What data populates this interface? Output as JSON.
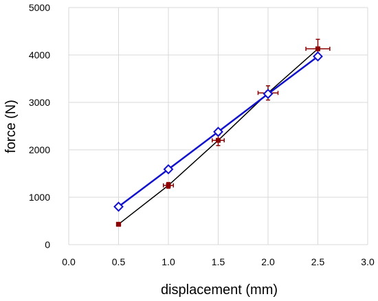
{
  "chart_data": {
    "type": "scatter",
    "title": "",
    "xlabel": "displacement (mm)",
    "ylabel": "force (N)",
    "xlim": [
      0,
      3
    ],
    "ylim": [
      0,
      5000
    ],
    "xticks": [
      "0.0",
      "0.5",
      "1.0",
      "1.5",
      "2.0",
      "2.5",
      "3.0"
    ],
    "yticks": [
      "0",
      "1000",
      "2000",
      "3000",
      "4000",
      "5000"
    ],
    "grid": true,
    "legend": "none",
    "series": [
      {
        "color": "#000000",
        "marker": "none",
        "line": true,
        "x": [
          0.5,
          1.0,
          1.5,
          2.0,
          2.5
        ],
        "y": [
          430,
          1250,
          2200,
          3200,
          4130
        ]
      },
      {
        "color": "#8b0000",
        "marker": "square",
        "line": false,
        "x": [
          0.5,
          1.0,
          1.5,
          2.0,
          2.5
        ],
        "y": [
          430,
          1250,
          2200,
          3200,
          4130
        ],
        "x_error": [
          0.02,
          0.05,
          0.06,
          0.1,
          0.12
        ],
        "y_error": [
          25,
          60,
          110,
          150,
          200
        ]
      },
      {
        "color": "#1010cc",
        "marker": "diamond",
        "line": true,
        "x": [
          0.5,
          1.0,
          1.5,
          2.0,
          2.5
        ],
        "y": [
          800,
          1590,
          2380,
          3180,
          3970
        ]
      }
    ]
  }
}
